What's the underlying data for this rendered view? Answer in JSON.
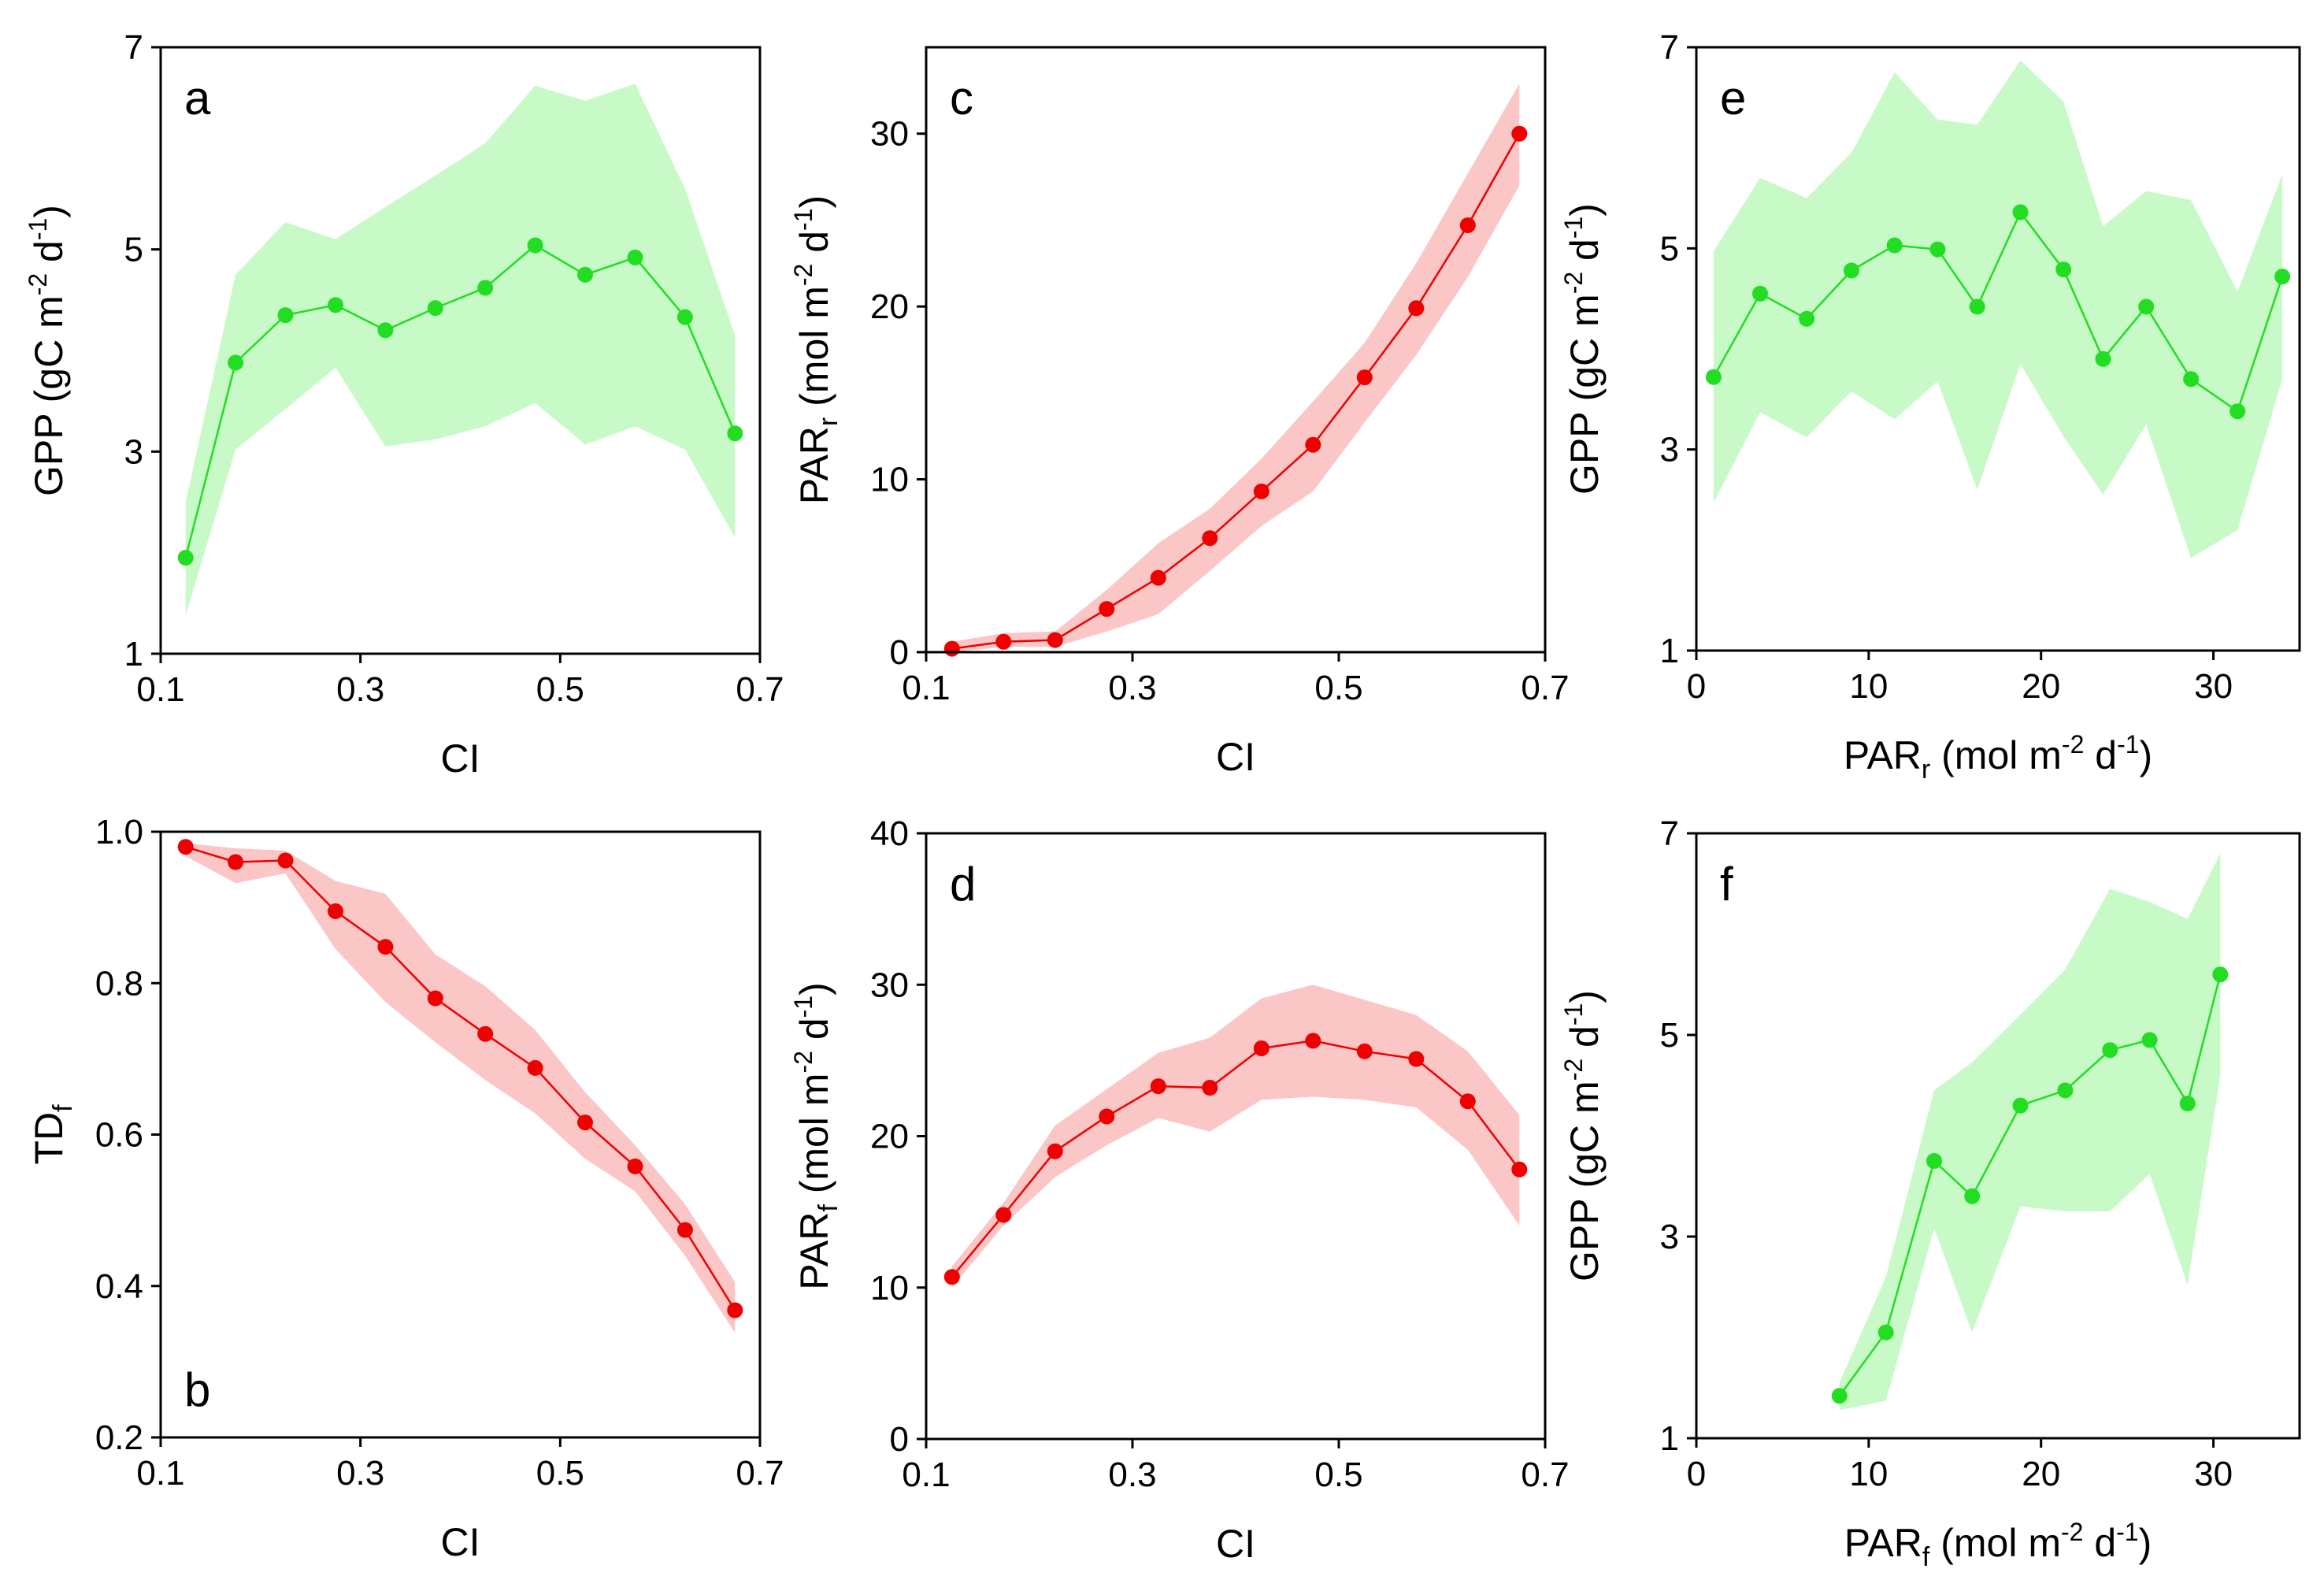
{
  "figure": {
    "colors": {
      "green_point": "#22dd22",
      "green_band": "#c8fac8",
      "red_point": "#ee0000",
      "red_band": "#fbc6c6"
    }
  },
  "chart_data": [
    {
      "id": "a",
      "type": "line",
      "color": "green",
      "title": "",
      "letter": "a",
      "letter_pos": "top-left",
      "xlabel": {
        "main": "CI",
        "sub": "",
        "unit": "",
        "unit_parts": []
      },
      "ylabel": {
        "main": "GPP",
        "sub": "",
        "unit": "(gC m-2 d-1)",
        "unit_parts": [
          [
            "(gC m",
            ""
          ],
          [
            "-2",
            "sup"
          ],
          [
            " d",
            ""
          ],
          [
            "-1",
            "sup"
          ],
          [
            ")",
            ""
          ]
        ]
      },
      "xlim": [
        0.1,
        0.7
      ],
      "ylim": [
        1,
        7
      ],
      "xticks": [
        0.1,
        0.3,
        0.5,
        0.7
      ],
      "yticks": [
        1,
        3,
        5,
        7
      ],
      "xtick_labels": [
        "0.1",
        "0.3",
        "0.5",
        "0.7"
      ],
      "ytick_labels": [
        "1",
        "3",
        "5",
        "7"
      ],
      "x": [
        0.125,
        0.175,
        0.225,
        0.275,
        0.325,
        0.375,
        0.425,
        0.475,
        0.525,
        0.575,
        0.625,
        0.675
      ],
      "y": [
        1.95,
        3.88,
        4.35,
        4.45,
        4.2,
        4.42,
        4.62,
        5.04,
        4.75,
        4.92,
        4.33,
        3.18
      ],
      "band_upper": [
        2.5,
        4.75,
        5.27,
        5.1,
        5.42,
        5.73,
        6.05,
        6.62,
        6.47,
        6.64,
        5.6,
        4.15
      ],
      "band_lower": [
        1.38,
        3.02,
        3.42,
        3.83,
        3.05,
        3.12,
        3.25,
        3.48,
        3.07,
        3.25,
        3.02,
        2.15
      ]
    },
    {
      "id": "b",
      "type": "line",
      "color": "red",
      "title": "",
      "letter": "b",
      "letter_pos": "bottom-left",
      "xlabel": {
        "main": "CI",
        "sub": "",
        "unit": "",
        "unit_parts": []
      },
      "ylabel": {
        "main": "TD",
        "sub": "f",
        "unit": "",
        "unit_parts": []
      },
      "xlim": [
        0.1,
        0.7
      ],
      "ylim": [
        0.2,
        1.0
      ],
      "xticks": [
        0.1,
        0.3,
        0.5,
        0.7
      ],
      "yticks": [
        0.2,
        0.4,
        0.6,
        0.8,
        1.0
      ],
      "xtick_labels": [
        "0.1",
        "0.3",
        "0.5",
        "0.7"
      ],
      "ytick_labels": [
        "0.2",
        "0.4",
        "0.6",
        "0.8",
        "1.0"
      ],
      "x": [
        0.125,
        0.175,
        0.225,
        0.275,
        0.325,
        0.375,
        0.425,
        0.475,
        0.525,
        0.575,
        0.625,
        0.675
      ],
      "y": [
        0.98,
        0.96,
        0.962,
        0.895,
        0.848,
        0.78,
        0.733,
        0.688,
        0.616,
        0.558,
        0.474,
        0.368
      ],
      "band_upper": [
        0.985,
        0.978,
        0.975,
        0.935,
        0.918,
        0.838,
        0.796,
        0.738,
        0.656,
        0.586,
        0.508,
        0.405
      ],
      "band_lower": [
        0.968,
        0.932,
        0.945,
        0.845,
        0.775,
        0.722,
        0.672,
        0.628,
        0.568,
        0.525,
        0.44,
        0.338
      ]
    },
    {
      "id": "c",
      "type": "line",
      "color": "red",
      "title": "",
      "letter": "c",
      "letter_pos": "top-left",
      "xlabel": {
        "main": "CI",
        "sub": "",
        "unit": "",
        "unit_parts": []
      },
      "ylabel": {
        "main": "PAR",
        "sub": "r",
        "unit": "(mol m-2 d-1)",
        "unit_parts": [
          [
            "(mol m",
            ""
          ],
          [
            "-2",
            "sup"
          ],
          [
            " d",
            ""
          ],
          [
            "-1",
            "sup"
          ],
          [
            ")",
            ""
          ]
        ]
      },
      "xlim": [
        0.1,
        0.7
      ],
      "ylim": [
        0,
        35
      ],
      "xticks": [
        0.1,
        0.3,
        0.5,
        0.7
      ],
      "yticks": [
        0,
        10,
        20,
        30
      ],
      "xtick_labels": [
        "0.1",
        "0.3",
        "0.5",
        "0.7"
      ],
      "ytick_labels": [
        "0",
        "10",
        "20",
        "30"
      ],
      "x": [
        0.125,
        0.175,
        0.225,
        0.275,
        0.325,
        0.375,
        0.425,
        0.475,
        0.525,
        0.575,
        0.625,
        0.675
      ],
      "y": [
        0.2,
        0.6,
        0.7,
        2.5,
        4.3,
        6.6,
        9.3,
        12.0,
        15.9,
        19.9,
        24.7,
        30.0
      ],
      "band_upper": [
        0.6,
        1.1,
        1.2,
        3.6,
        6.3,
        8.3,
        11.2,
        14.5,
        17.9,
        22.5,
        27.7,
        32.9
      ],
      "band_lower": [
        0.0,
        0.3,
        0.3,
        1.2,
        2.2,
        4.7,
        7.3,
        9.3,
        13.3,
        17.2,
        21.7,
        27.0
      ]
    },
    {
      "id": "d",
      "type": "line",
      "color": "red",
      "title": "",
      "letter": "d",
      "letter_pos": "top-left",
      "xlabel": {
        "main": "CI",
        "sub": "",
        "unit": "",
        "unit_parts": []
      },
      "ylabel": {
        "main": "PAR",
        "sub": "f",
        "unit": "(mol m-2 d-1)",
        "unit_parts": [
          [
            "(mol m",
            ""
          ],
          [
            "-2",
            "sup"
          ],
          [
            " d",
            ""
          ],
          [
            "-1",
            "sup"
          ],
          [
            ")",
            ""
          ]
        ]
      },
      "xlim": [
        0.1,
        0.7
      ],
      "ylim": [
        0,
        40
      ],
      "xticks": [
        0.1,
        0.3,
        0.5,
        0.7
      ],
      "yticks": [
        0,
        10,
        20,
        30,
        40
      ],
      "xtick_labels": [
        "0.1",
        "0.3",
        "0.5",
        "0.7"
      ],
      "ytick_labels": [
        "0",
        "10",
        "20",
        "30",
        "40"
      ],
      "x": [
        0.125,
        0.175,
        0.225,
        0.275,
        0.325,
        0.375,
        0.425,
        0.475,
        0.525,
        0.575,
        0.625,
        0.675
      ],
      "y": [
        10.7,
        14.8,
        19.0,
        21.3,
        23.3,
        23.2,
        25.8,
        26.3,
        25.6,
        25.1,
        22.3,
        17.8
      ],
      "band_upper": [
        11.4,
        15.6,
        20.7,
        23.1,
        25.5,
        26.5,
        29.1,
        30.0,
        29.0,
        28.0,
        25.6,
        21.4
      ],
      "band_lower": [
        10.0,
        14.1,
        17.3,
        19.4,
        21.2,
        20.3,
        22.4,
        22.6,
        22.4,
        21.9,
        19.1,
        14.1
      ]
    },
    {
      "id": "e",
      "type": "line",
      "color": "green",
      "title": "",
      "letter": "e",
      "letter_pos": "top-left",
      "xlabel": {
        "main": "PAR",
        "sub": "r",
        "unit": "(mol m-2 d-1)",
        "unit_parts": [
          [
            "(mol m",
            ""
          ],
          [
            "-2",
            "sup"
          ],
          [
            " d",
            ""
          ],
          [
            "-1",
            "sup"
          ],
          [
            ")",
            ""
          ]
        ]
      },
      "ylabel": {
        "main": "GPP",
        "sub": "",
        "unit": "(gC m-2 d-1)",
        "unit_parts": [
          [
            "(gC m",
            ""
          ],
          [
            "-2",
            "sup"
          ],
          [
            " d",
            ""
          ],
          [
            "-1",
            "sup"
          ],
          [
            ")",
            ""
          ]
        ]
      },
      "xlim": [
        0,
        35
      ],
      "ylim": [
        1,
        7
      ],
      "xticks": [
        0,
        10,
        20,
        30
      ],
      "yticks": [
        1,
        3,
        5,
        7
      ],
      "xtick_labels": [
        "0",
        "10",
        "20",
        "30"
      ],
      "ytick_labels": [
        "1",
        "3",
        "5",
        "7"
      ],
      "x": [
        1.0,
        3.7,
        6.4,
        9.0,
        11.5,
        14.0,
        16.3,
        18.8,
        21.3,
        23.6,
        26.1,
        28.7,
        31.4,
        34.0
      ],
      "y": [
        3.72,
        4.55,
        4.3,
        4.78,
        5.03,
        4.99,
        4.42,
        5.36,
        4.79,
        3.9,
        4.42,
        3.7,
        3.38,
        4.72
      ],
      "band_upper": [
        4.97,
        5.7,
        5.5,
        5.95,
        6.75,
        6.28,
        6.23,
        6.87,
        6.46,
        5.22,
        5.57,
        5.48,
        4.57,
        5.74
      ],
      "band_lower": [
        2.47,
        3.37,
        3.12,
        3.58,
        3.3,
        3.68,
        2.6,
        3.85,
        3.13,
        2.55,
        3.25,
        1.92,
        2.2,
        3.7
      ]
    },
    {
      "id": "f",
      "type": "line",
      "color": "green",
      "title": "",
      "letter": "f",
      "letter_pos": "top-left",
      "xlabel": {
        "main": "PAR",
        "sub": "f",
        "unit": "(mol m-2 d-1)",
        "unit_parts": [
          [
            "(mol m",
            ""
          ],
          [
            "-2",
            "sup"
          ],
          [
            " d",
            ""
          ],
          [
            "-1",
            "sup"
          ],
          [
            ")",
            ""
          ]
        ]
      },
      "ylabel": {
        "main": "GPP",
        "sub": "",
        "unit": "(gC m-2 d-1)",
        "unit_parts": [
          [
            "(gC m",
            ""
          ],
          [
            "-2",
            "sup"
          ],
          [
            " d",
            ""
          ],
          [
            "-1",
            "sup"
          ],
          [
            ")",
            ""
          ]
        ]
      },
      "xlim": [
        0,
        35
      ],
      "ylim": [
        1,
        7
      ],
      "xticks": [
        0,
        10,
        20,
        30
      ],
      "yticks": [
        1,
        3,
        5,
        7
      ],
      "xtick_labels": [
        "0",
        "10",
        "20",
        "30"
      ],
      "ytick_labels": [
        "1",
        "3",
        "5",
        "7"
      ],
      "x": [
        8.3,
        11.0,
        13.8,
        16.0,
        18.8,
        21.4,
        24.0,
        26.3,
        28.5,
        30.4
      ],
      "y": [
        1.42,
        2.05,
        3.75,
        3.4,
        4.3,
        4.45,
        4.85,
        4.95,
        4.32,
        5.6
      ],
      "band_upper": [
        1.55,
        2.6,
        4.45,
        4.73,
        5.2,
        5.65,
        6.45,
        6.32,
        6.15,
        6.8
      ],
      "band_lower": [
        1.28,
        1.37,
        3.08,
        2.05,
        3.3,
        3.25,
        3.25,
        3.62,
        2.52,
        4.6
      ]
    }
  ]
}
